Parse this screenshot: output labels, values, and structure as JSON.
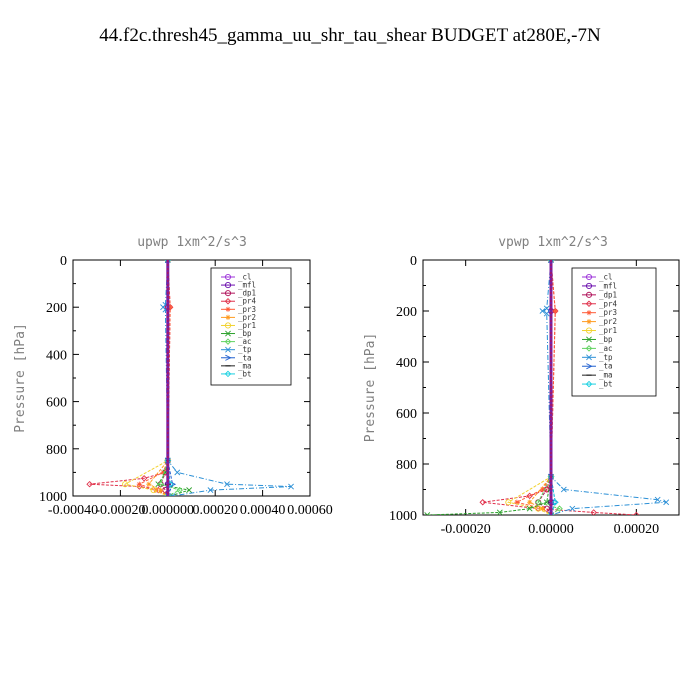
{
  "suptitle": "44.f2c.thresh45_gamma_uu_shr_tau_shear  BUDGET at280E,-7N",
  "legend_entries": [
    {
      "label": "_cl",
      "color": "#9b30d9",
      "marker": "circle"
    },
    {
      "label": "_mfl",
      "color": "#6a0dad",
      "marker": "circle"
    },
    {
      "label": "_dp1",
      "color": "#b0125a",
      "marker": "circle"
    },
    {
      "label": "_pr4",
      "color": "#e0304a",
      "marker": "diamond"
    },
    {
      "label": "_pr3",
      "color": "#ff5a36",
      "marker": "star"
    },
    {
      "label": "_pr2",
      "color": "#ff9a1f",
      "marker": "star"
    },
    {
      "label": "_pr1",
      "color": "#f2d22e",
      "marker": "circle"
    },
    {
      "label": "_bp",
      "color": "#2aa02a",
      "marker": "cross"
    },
    {
      "label": "_ac",
      "color": "#5fd35f",
      "marker": "diamond"
    },
    {
      "label": "_tp",
      "color": "#2a8fd6",
      "marker": "cross"
    },
    {
      "label": "_ta",
      "color": "#2060d0",
      "marker": "arrow"
    },
    {
      "label": "_ma",
      "color": "#222222",
      "marker": "dash"
    },
    {
      "label": "_bt",
      "color": "#19d0e0",
      "marker": "diamond"
    }
  ],
  "chart_data": [
    {
      "type": "line",
      "title": "upwp  1xm^2/s^3",
      "xlabel": "",
      "ylabel": "Pressure [hPa]",
      "xlim": [
        -0.0004,
        0.0006
      ],
      "ylim": [
        1000,
        0
      ],
      "x_ticks": [
        -0.0004,
        -0.0002,
        0.0,
        0.0002,
        0.0004,
        0.0006
      ],
      "x_tick_labels": [
        "-0.00040",
        "-0.00020",
        "0.000000",
        "0.00020",
        "0.00040",
        "0.00060"
      ],
      "y_ticks": [
        0,
        200,
        400,
        600,
        800,
        1000
      ],
      "y_tick_labels": [
        "0",
        "200",
        "400",
        "600",
        "800",
        "1000"
      ],
      "legend_position": "top-right",
      "series": [
        {
          "name": "_cl",
          "color": "#9b30d9",
          "pressure": [
            0,
            200,
            850,
            950,
            1000
          ],
          "values": [
            0,
            0,
            0,
            0,
            0
          ]
        },
        {
          "name": "_mfl",
          "color": "#6a0dad",
          "pressure": [
            0,
            200,
            850,
            950,
            1000
          ],
          "values": [
            0,
            0,
            0,
            0,
            0
          ]
        },
        {
          "name": "_dp1",
          "color": "#b0125a",
          "pressure": [
            0,
            200,
            850,
            900,
            950,
            975,
            1000
          ],
          "values": [
            0,
            0,
            0,
            -1e-05,
            -3e-05,
            -1e-05,
            0
          ]
        },
        {
          "name": "_pr4",
          "color": "#e0304a",
          "pressure": [
            0,
            200,
            850,
            900,
            925,
            950,
            960,
            975,
            1000
          ],
          "values": [
            0,
            1e-05,
            0,
            -1e-05,
            -0.0001,
            -0.00033,
            -0.00012,
            -4e-05,
            0
          ]
        },
        {
          "name": "_pr3",
          "color": "#ff5a36",
          "pressure": [
            0,
            200,
            850,
            900,
            950,
            975,
            1000
          ],
          "values": [
            0,
            1e-05,
            0,
            -2e-05,
            -0.00012,
            -5e-05,
            0
          ]
        },
        {
          "name": "_pr2",
          "color": "#ff9a1f",
          "pressure": [
            0,
            850,
            950,
            975,
            1000
          ],
          "values": [
            0,
            0,
            -8e-05,
            -3e-05,
            0
          ]
        },
        {
          "name": "_pr1",
          "color": "#f2d22e",
          "pressure": [
            0,
            850,
            950,
            975,
            1000
          ],
          "values": [
            0,
            0,
            -0.00018,
            -6e-05,
            0
          ]
        },
        {
          "name": "_bp",
          "color": "#2aa02a",
          "pressure": [
            0,
            850,
            900,
            950,
            975,
            1000
          ],
          "values": [
            0,
            0,
            -1e-05,
            -4e-05,
            9e-05,
            1e-05
          ]
        },
        {
          "name": "_ac",
          "color": "#5fd35f",
          "pressure": [
            0,
            850,
            950,
            975,
            1000
          ],
          "values": [
            0,
            0,
            -3e-05,
            5e-05,
            0
          ]
        },
        {
          "name": "_tp",
          "color": "#2a8fd6",
          "pressure": [
            0,
            190,
            200,
            210,
            850,
            900,
            950,
            960,
            975,
            1000
          ],
          "values": [
            0,
            -1e-05,
            -2e-05,
            -1e-05,
            0,
            4e-05,
            0.00025,
            0.00052,
            0.00018,
            2e-05
          ]
        },
        {
          "name": "_ta",
          "color": "#2060d0",
          "pressure": [
            0,
            850,
            950,
            1000
          ],
          "values": [
            0,
            0,
            2e-05,
            0
          ]
        },
        {
          "name": "_ma",
          "color": "#222222",
          "pressure": [
            0,
            850,
            950,
            1000
          ],
          "values": [
            0,
            0,
            0,
            0
          ]
        },
        {
          "name": "_bt",
          "color": "#19d0e0",
          "pressure": [
            0,
            850,
            950,
            1000
          ],
          "values": [
            0,
            0,
            1e-05,
            0
          ]
        }
      ]
    },
    {
      "type": "line",
      "title": "vpwp  1xm^2/s^3",
      "xlabel": "",
      "ylabel": "Pressure [hPa]",
      "xlim": [
        -0.0003,
        0.0003
      ],
      "ylim": [
        1000,
        0
      ],
      "x_ticks": [
        -0.0002,
        0.0,
        0.0002
      ],
      "x_tick_labels": [
        "-0.00020",
        "0.00000",
        "0.00020"
      ],
      "y_ticks": [
        0,
        200,
        400,
        600,
        800,
        1000
      ],
      "y_tick_labels": [
        "0",
        "200",
        "400",
        "600",
        "800",
        "1000"
      ],
      "legend_position": "top-right",
      "series": [
        {
          "name": "_cl",
          "color": "#9b30d9",
          "pressure": [
            0,
            200,
            850,
            950,
            1000
          ],
          "values": [
            0,
            0,
            0,
            0,
            0
          ]
        },
        {
          "name": "_mfl",
          "color": "#6a0dad",
          "pressure": [
            0,
            200,
            850,
            950,
            1000
          ],
          "values": [
            0,
            0,
            0,
            0,
            0
          ]
        },
        {
          "name": "_dp1",
          "color": "#b0125a",
          "pressure": [
            0,
            850,
            900,
            950,
            975,
            1000
          ],
          "values": [
            0,
            0,
            -1e-05,
            -3e-05,
            -1e-05,
            0
          ]
        },
        {
          "name": "_pr4",
          "color": "#e0304a",
          "pressure": [
            0,
            200,
            850,
            900,
            925,
            950,
            975,
            990,
            1000
          ],
          "values": [
            0,
            1e-05,
            0,
            -1e-05,
            -5e-05,
            -0.00016,
            -3e-05,
            0.0001,
            0.0002
          ]
        },
        {
          "name": "_pr3",
          "color": "#ff5a36",
          "pressure": [
            0,
            200,
            850,
            900,
            950,
            975,
            1000
          ],
          "values": [
            0,
            1e-05,
            0,
            -2e-05,
            -8e-05,
            -2e-05,
            0
          ]
        },
        {
          "name": "_pr2",
          "color": "#ff9a1f",
          "pressure": [
            0,
            850,
            950,
            975,
            1000
          ],
          "values": [
            0,
            0,
            -5e-05,
            -2e-05,
            0
          ]
        },
        {
          "name": "_pr1",
          "color": "#f2d22e",
          "pressure": [
            0,
            850,
            950,
            975,
            1000
          ],
          "values": [
            0,
            0,
            -0.0001,
            -3e-05,
            0
          ]
        },
        {
          "name": "_bp",
          "color": "#2aa02a",
          "pressure": [
            0,
            850,
            950,
            975,
            990,
            1000
          ],
          "values": [
            0,
            0,
            -1e-05,
            -5e-05,
            -0.00012,
            -0.00029
          ]
        },
        {
          "name": "_ac",
          "color": "#5fd35f",
          "pressure": [
            0,
            850,
            950,
            975,
            1000
          ],
          "values": [
            0,
            0,
            -3e-05,
            2e-05,
            0
          ]
        },
        {
          "name": "_tp",
          "color": "#2a8fd6",
          "pressure": [
            0,
            190,
            200,
            210,
            850,
            900,
            940,
            950,
            975,
            1000
          ],
          "values": [
            0,
            -1e-05,
            -2e-05,
            -1e-05,
            0,
            3e-05,
            0.00025,
            0.00027,
            5e-05,
            0
          ]
        },
        {
          "name": "_ta",
          "color": "#2060d0",
          "pressure": [
            0,
            850,
            950,
            1000
          ],
          "values": [
            0,
            0,
            1e-05,
            0
          ]
        },
        {
          "name": "_ma",
          "color": "#222222",
          "pressure": [
            0,
            850,
            950,
            1000
          ],
          "values": [
            0,
            0,
            0,
            0
          ]
        },
        {
          "name": "_bt",
          "color": "#19d0e0",
          "pressure": [
            0,
            850,
            950,
            1000
          ],
          "values": [
            0,
            0,
            1e-05,
            0
          ]
        }
      ]
    }
  ]
}
